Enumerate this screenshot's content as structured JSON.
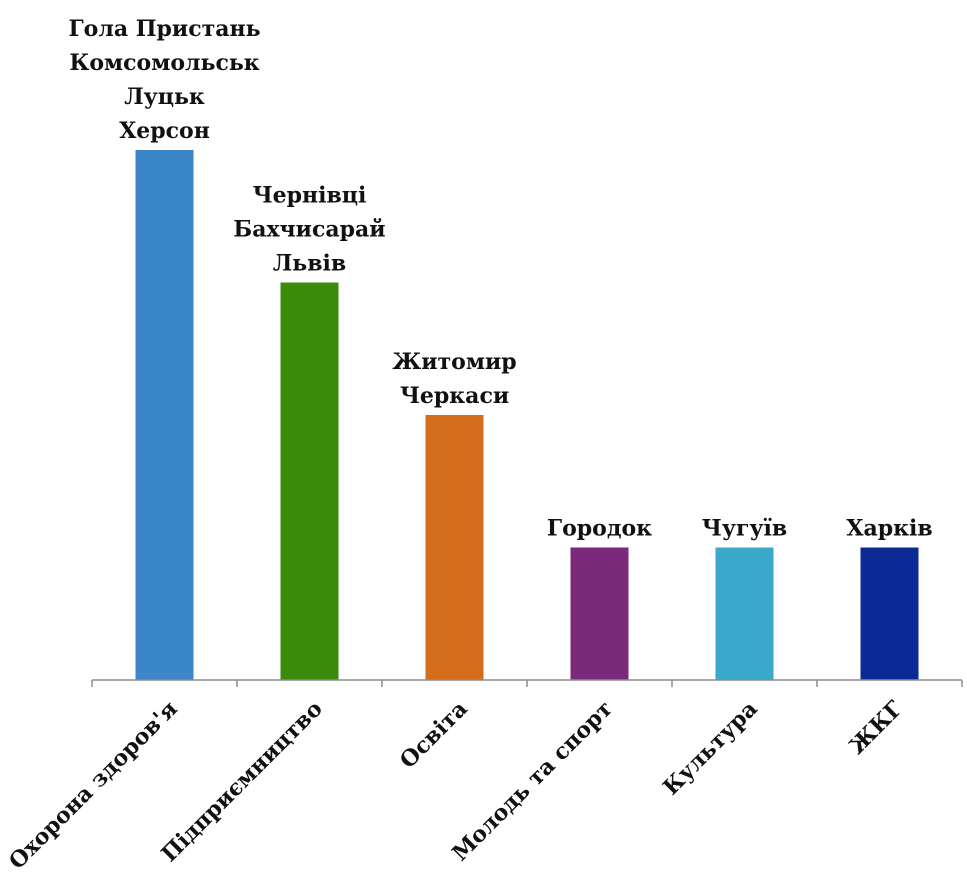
{
  "chart_data": {
    "type": "bar",
    "title": "",
    "xlabel": "",
    "ylabel": "",
    "categories": [
      "Охорона здоров'я",
      "Підприємництво",
      "Освіта",
      "Молодь та спорт",
      "Культура",
      "ЖКГ"
    ],
    "values": [
      4,
      3,
      2,
      1,
      1,
      1
    ],
    "ylim": [
      0,
      4
    ],
    "grid": false,
    "bar_colors": [
      "#3a86c8",
      "#3a8a0b",
      "#d46d1c",
      "#7b2a7b",
      "#3aa9cc",
      "#0b2a96"
    ],
    "data_labels": [
      [
        "Гола Пристань",
        "Комсомольськ",
        "Луцьк",
        "Херсон"
      ],
      [
        "Чернівці",
        "Бахчисарай",
        "Львів"
      ],
      [
        "Житомир",
        "Черкаси"
      ],
      [
        "Городок"
      ],
      [
        "Чугуїв"
      ],
      [
        "Харків"
      ]
    ]
  }
}
